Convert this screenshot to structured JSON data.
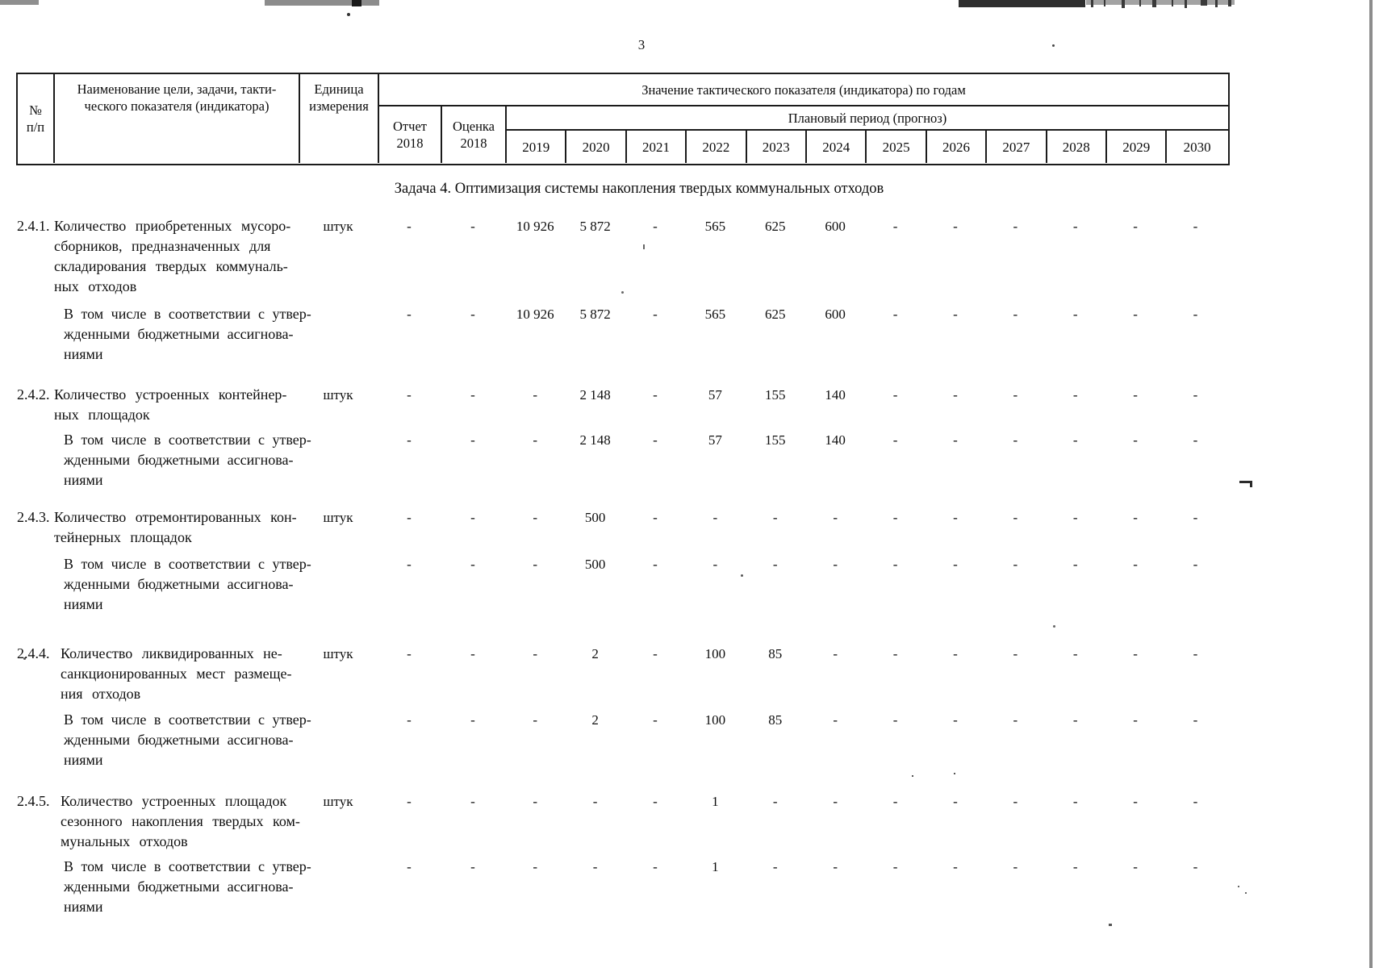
{
  "page": {
    "number": "3"
  },
  "table": {
    "header": {
      "no": "№\nп/п",
      "name": "Наименование цели, задачи, такти-\nческого показателя (индикатора)",
      "unit": "Единица\nизмерения",
      "values_title": "Значение тактического показателя (индикатора) по годам",
      "report": "Отчет\n2018",
      "estimate": "Оценка\n2018",
      "plan_period": "Плановый период (прогноз)",
      "years": [
        "2019",
        "2020",
        "2021",
        "2022",
        "2023",
        "2024",
        "2025",
        "2026",
        "2027",
        "2028",
        "2029",
        "2030"
      ]
    },
    "section_title": "Задача 4. Оптимизация системы накопления твердых коммунальных отходов",
    "rows": [
      {
        "num": "2.4.1.",
        "label": "Количество приобретенных мусоро-\nсборников, предназначенных для\nскладирования твердых коммуналь-\nных отходов",
        "unit": "штук",
        "values": [
          "-",
          "-",
          "10 926",
          "5 872",
          "-",
          "565",
          "625",
          "600",
          "-",
          "-",
          "-",
          "-",
          "-",
          "-"
        ]
      },
      {
        "num": "",
        "label": "В том числе в соответствии с утвер-\nжденными бюджетными ассигнова-\nниями",
        "unit": "",
        "values": [
          "-",
          "-",
          "10 926",
          "5 872",
          "-",
          "565",
          "625",
          "600",
          "-",
          "-",
          "-",
          "-",
          "-",
          "-"
        ]
      },
      {
        "num": "2.4.2.",
        "label": "Количество устроенных контейнер-\nных площадок",
        "unit": "штук",
        "values": [
          "-",
          "-",
          "-",
          "2 148",
          "-",
          "57",
          "155",
          "140",
          "-",
          "-",
          "-",
          "-",
          "-",
          "-"
        ]
      },
      {
        "num": "",
        "label": "В том числе в соответствии с утвер-\nжденными бюджетными ассигнова-\nниями",
        "unit": "",
        "values": [
          "-",
          "-",
          "-",
          "2 148",
          "-",
          "57",
          "155",
          "140",
          "-",
          "-",
          "-",
          "-",
          "-",
          "-"
        ]
      },
      {
        "num": "2.4.3.",
        "label": "Количество отремонтированных кон-\nтейнерных площадок",
        "unit": "штук",
        "values": [
          "-",
          "-",
          "-",
          "500",
          "-",
          "-",
          "-",
          "-",
          "-",
          "-",
          "-",
          "-",
          "-",
          "-"
        ]
      },
      {
        "num": "",
        "label": "В том числе в соответствии с утвер-\nжденными бюджетными ассигнова-\nниями",
        "unit": "",
        "values": [
          "-",
          "-",
          "-",
          "500",
          "-",
          "-",
          "-",
          "-",
          "-",
          "-",
          "-",
          "-",
          "-",
          "-"
        ]
      },
      {
        "num": "2.4.4.",
        "label": "Количество ликвидированных не-\nсанкционированных мест размеще-\nния отходов",
        "unit": "штук",
        "values": [
          "-",
          "-",
          "-",
          "2",
          "-",
          "100",
          "85",
          "-",
          "-",
          "-",
          "-",
          "-",
          "-",
          "-"
        ]
      },
      {
        "num": "",
        "label": "В том числе в соответствии с утвер-\nжденными бюджетными ассигнова-\nниями",
        "unit": "",
        "values": [
          "-",
          "-",
          "-",
          "2",
          "-",
          "100",
          "85",
          "-",
          "-",
          "-",
          "-",
          "-",
          "-",
          "-"
        ]
      },
      {
        "num": "2.4.5.",
        "label": "Количество устроенных площадок\nсезонного накопления твердых ком-\nмунальных отходов",
        "unit": "штук",
        "values": [
          "-",
          "-",
          "-",
          "-",
          "-",
          "1",
          "-",
          "-",
          "-",
          "-",
          "-",
          "-",
          "-",
          "-"
        ]
      },
      {
        "num": "",
        "label": "В том числе в соответствии с утвер-\nжденными бюджетными ассигнова-\nниями",
        "unit": "",
        "values": [
          "-",
          "-",
          "-",
          "-",
          "-",
          "1",
          "-",
          "-",
          "-",
          "-",
          "-",
          "-",
          "-",
          "-"
        ]
      }
    ]
  }
}
